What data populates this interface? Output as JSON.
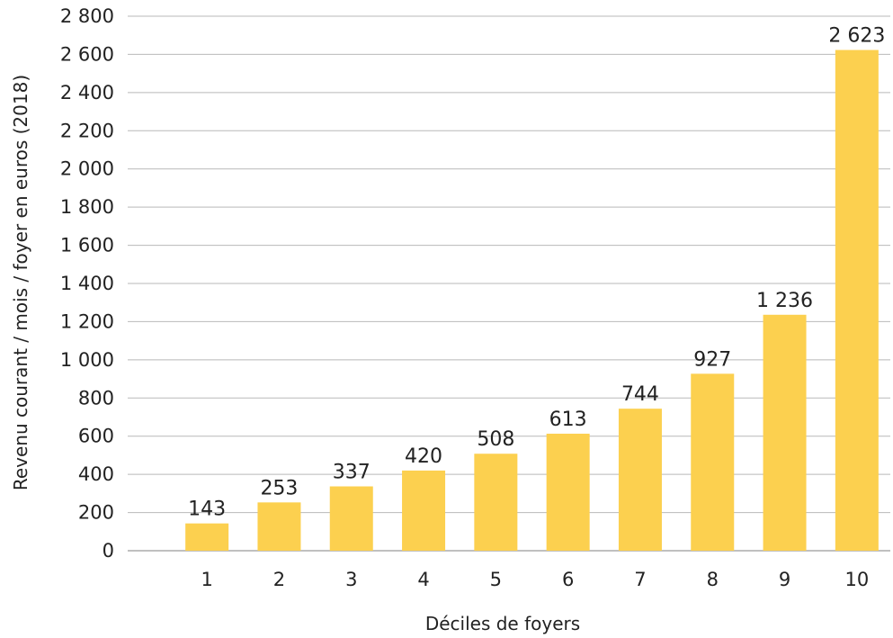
{
  "chart_data": {
    "type": "bar",
    "categories": [
      "1",
      "2",
      "3",
      "4",
      "5",
      "6",
      "7",
      "8",
      "9",
      "10"
    ],
    "values": [
      143,
      253,
      337,
      420,
      508,
      613,
      744,
      927,
      1236,
      2623
    ],
    "value_labels": [
      "143",
      "253",
      "337",
      "420",
      "508",
      "613",
      "744",
      "927",
      "1 236",
      "2 623"
    ],
    "title": "",
    "xlabel": "Déciles de foyers",
    "ylabel": "Revenu courant / mois / foyer en euros (2018)",
    "ylim": [
      0,
      2800
    ],
    "y_ticks": [
      0,
      200,
      400,
      600,
      800,
      1000,
      1200,
      1400,
      1600,
      1800,
      2000,
      2200,
      2400,
      2600,
      2800
    ],
    "y_tick_labels": [
      "0",
      "200",
      "400",
      "600",
      "800",
      "1 000",
      "1 200",
      "1 400",
      "1 600",
      "1 800",
      "2 000",
      "2 200",
      "2 400",
      "2 600",
      "2 800"
    ],
    "grid": true,
    "legend": "none",
    "bar_color": "#fcd04f"
  }
}
